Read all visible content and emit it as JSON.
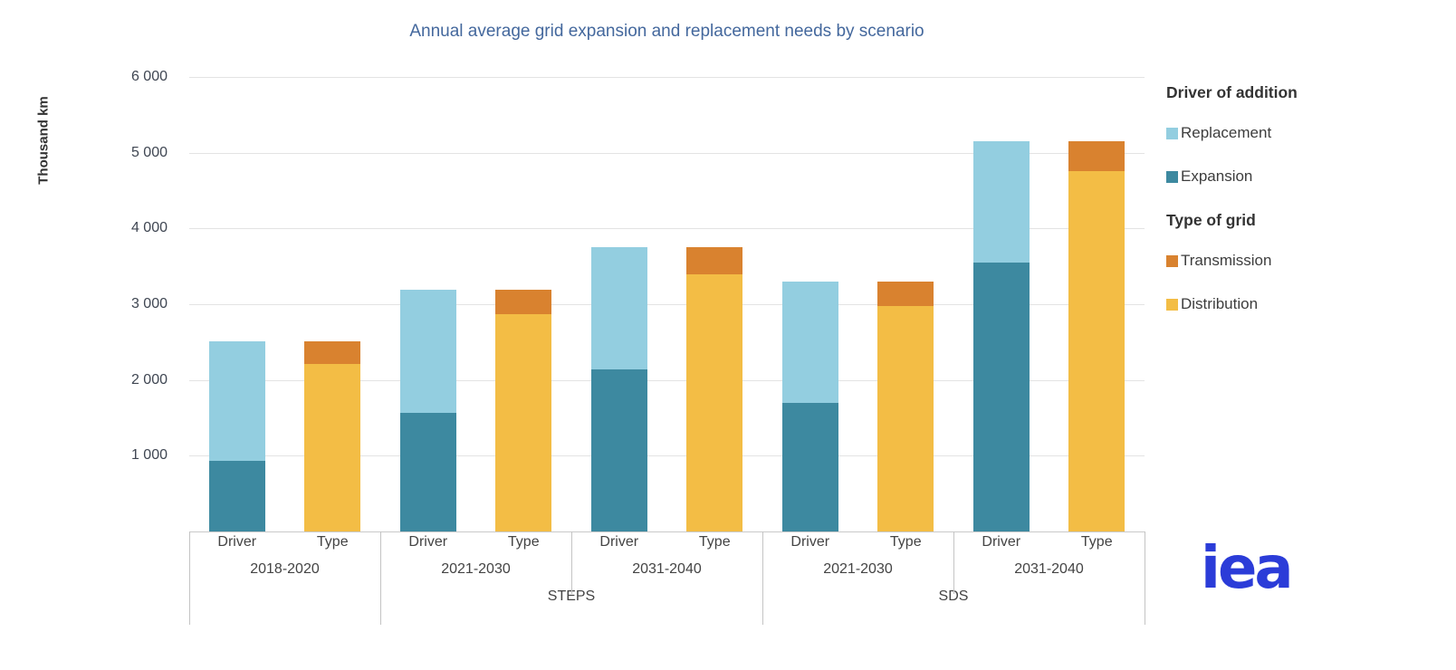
{
  "title": "Annual average grid expansion and replacement needs by scenario",
  "logo_text": "iea",
  "colors": {
    "replacement": "#93cee0",
    "expansion": "#3d89a0",
    "transmission": "#d9822f",
    "distribution": "#f3bd45",
    "title_text": "#44689d",
    "logo_blue": "#2b3cd8",
    "gridline": "#e3e3e3",
    "axis_line": "#c4c4c4"
  },
  "legend": {
    "sections": [
      {
        "header": "Driver of addition",
        "items": [
          {
            "label": "Replacement",
            "color": "#93cee0"
          },
          {
            "label": "Expansion",
            "color": "#3d89a0"
          }
        ]
      },
      {
        "header": "Type of grid",
        "items": [
          {
            "label": "Transmission",
            "color": "#d9822f"
          },
          {
            "label": "Distribution",
            "color": "#f3bd45"
          }
        ]
      }
    ]
  },
  "chart_data": {
    "type": "bar",
    "stacked": true,
    "title": "Annual average grid expansion and replacement needs by scenario",
    "xlabel": "",
    "ylabel": "Thousand km",
    "ylim": [
      0,
      6000
    ],
    "yticks": [
      {
        "value": 1000,
        "label": "1 000"
      },
      {
        "value": 2000,
        "label": "2 000"
      },
      {
        "value": 3000,
        "label": "3 000"
      },
      {
        "value": 4000,
        "label": "4 000"
      },
      {
        "value": 5000,
        "label": "5 000"
      },
      {
        "value": 6000,
        "label": "6 000"
      }
    ],
    "grid": true,
    "legend_position": "right",
    "bar_sublabels": [
      "Driver",
      "Type"
    ],
    "groups": [
      {
        "period": "2018-2020",
        "scenario": "",
        "bars": [
          {
            "label": "Driver",
            "segments": [
              {
                "name": "Expansion",
                "value": 930,
                "color": "#3d89a0"
              },
              {
                "name": "Replacement",
                "value": 1580,
                "color": "#93cee0"
              }
            ]
          },
          {
            "label": "Type",
            "segments": [
              {
                "name": "Distribution",
                "value": 2210,
                "color": "#f3bd45"
              },
              {
                "name": "Transmission",
                "value": 300,
                "color": "#d9822f"
              }
            ]
          }
        ]
      },
      {
        "period": "2021-2030",
        "scenario": "STEPS",
        "bars": [
          {
            "label": "Driver",
            "segments": [
              {
                "name": "Expansion",
                "value": 1570,
                "color": "#3d89a0"
              },
              {
                "name": "Replacement",
                "value": 1620,
                "color": "#93cee0"
              }
            ]
          },
          {
            "label": "Type",
            "segments": [
              {
                "name": "Distribution",
                "value": 2870,
                "color": "#f3bd45"
              },
              {
                "name": "Transmission",
                "value": 320,
                "color": "#d9822f"
              }
            ]
          }
        ]
      },
      {
        "period": "2031-2040",
        "scenario": "STEPS",
        "bars": [
          {
            "label": "Driver",
            "segments": [
              {
                "name": "Expansion",
                "value": 2140,
                "color": "#3d89a0"
              },
              {
                "name": "Replacement",
                "value": 1610,
                "color": "#93cee0"
              }
            ]
          },
          {
            "label": "Type",
            "segments": [
              {
                "name": "Distribution",
                "value": 3390,
                "color": "#f3bd45"
              },
              {
                "name": "Transmission",
                "value": 360,
                "color": "#d9822f"
              }
            ]
          }
        ]
      },
      {
        "period": "2021-2030",
        "scenario": "SDS",
        "bars": [
          {
            "label": "Driver",
            "segments": [
              {
                "name": "Expansion",
                "value": 1700,
                "color": "#3d89a0"
              },
              {
                "name": "Replacement",
                "value": 1600,
                "color": "#93cee0"
              }
            ]
          },
          {
            "label": "Type",
            "segments": [
              {
                "name": "Distribution",
                "value": 2980,
                "color": "#f3bd45"
              },
              {
                "name": "Transmission",
                "value": 320,
                "color": "#d9822f"
              }
            ]
          }
        ]
      },
      {
        "period": "2031-2040",
        "scenario": "SDS",
        "bars": [
          {
            "label": "Driver",
            "segments": [
              {
                "name": "Expansion",
                "value": 3550,
                "color": "#3d89a0"
              },
              {
                "name": "Replacement",
                "value": 1600,
                "color": "#93cee0"
              }
            ]
          },
          {
            "label": "Type",
            "segments": [
              {
                "name": "Distribution",
                "value": 4760,
                "color": "#f3bd45"
              },
              {
                "name": "Transmission",
                "value": 390,
                "color": "#d9822f"
              }
            ]
          }
        ]
      }
    ],
    "scenario_spans": [
      {
        "label": "",
        "start": 0,
        "end": 0
      },
      {
        "label": "STEPS",
        "start": 1,
        "end": 2
      },
      {
        "label": "SDS",
        "start": 3,
        "end": 4
      }
    ]
  }
}
